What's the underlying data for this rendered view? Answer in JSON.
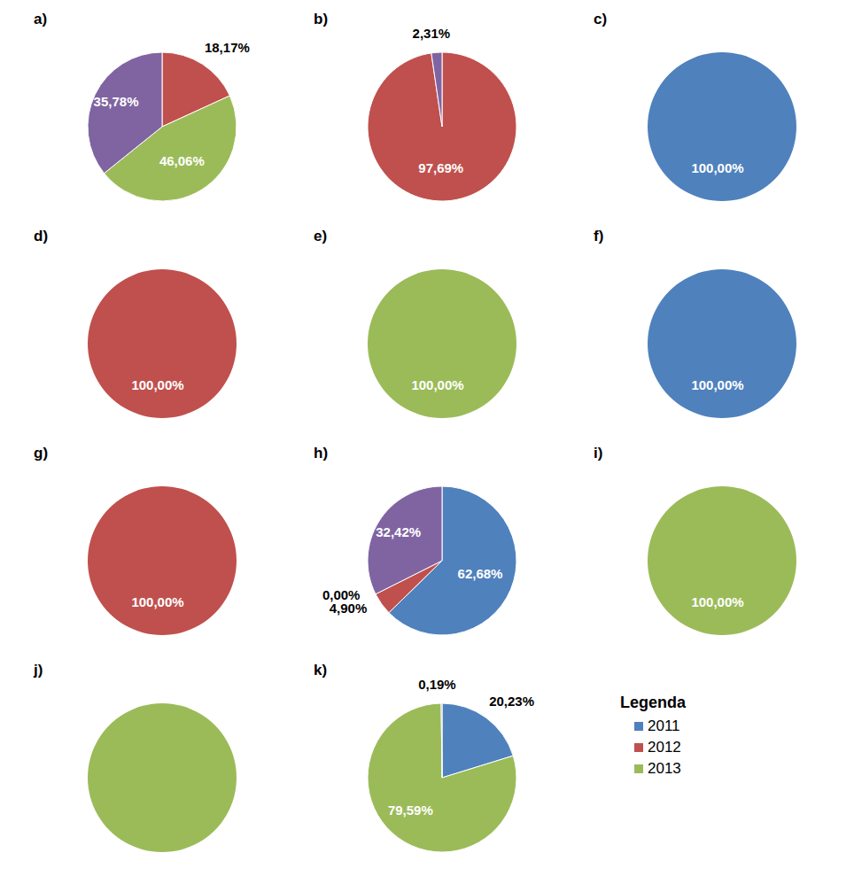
{
  "chart_data": [
    {
      "type": "pie",
      "title": "a)",
      "categories": [
        "2012",
        "2013",
        null
      ],
      "values": [
        18.17,
        46.06,
        35.78
      ],
      "value_labels": [
        "18,17%",
        "46,06%",
        "35,78%"
      ],
      "colors": [
        "#c0504d",
        "#9bbb59",
        "#8064a2"
      ],
      "data_labels": true
    },
    {
      "type": "pie",
      "title": "b)",
      "categories": [
        "2012",
        null
      ],
      "values": [
        97.69,
        2.31
      ],
      "value_labels": [
        "97,69%",
        "2,31%"
      ],
      "colors": [
        "#c0504d",
        "#8064a2"
      ],
      "data_labels": true
    },
    {
      "type": "pie",
      "title": "c)",
      "categories": [
        "2011"
      ],
      "values": [
        100
      ],
      "value_labels": [
        "100,00%"
      ],
      "colors": [
        "#4f81bd"
      ],
      "data_labels": true
    },
    {
      "type": "pie",
      "title": "d)",
      "categories": [
        "2012"
      ],
      "values": [
        100
      ],
      "value_labels": [
        "100,00%"
      ],
      "colors": [
        "#c0504d"
      ],
      "data_labels": true
    },
    {
      "type": "pie",
      "title": "e)",
      "categories": [
        "2013"
      ],
      "values": [
        100
      ],
      "value_labels": [
        "100,00%"
      ],
      "colors": [
        "#9bbb59"
      ],
      "data_labels": true
    },
    {
      "type": "pie",
      "title": "f)",
      "categories": [
        "2011"
      ],
      "values": [
        100
      ],
      "value_labels": [
        "100,00%"
      ],
      "colors": [
        "#4f81bd"
      ],
      "data_labels": true
    },
    {
      "type": "pie",
      "title": "g)",
      "categories": [
        "2012"
      ],
      "values": [
        100
      ],
      "value_labels": [
        "100,00%"
      ],
      "colors": [
        "#c0504d"
      ],
      "data_labels": true
    },
    {
      "type": "pie",
      "title": "h)",
      "categories": [
        "2011",
        "2012",
        "2013",
        null
      ],
      "values": [
        62.68,
        4.9,
        0,
        32.42
      ],
      "value_labels": [
        "62,68%",
        "4,90%",
        "0,00%",
        "32,42%"
      ],
      "colors": [
        "#4f81bd",
        "#c0504d",
        "#9bbb59",
        "#8064a2"
      ],
      "data_labels": true
    },
    {
      "type": "pie",
      "title": "i)",
      "categories": [
        "2013"
      ],
      "values": [
        100
      ],
      "value_labels": [
        "100,00%"
      ],
      "colors": [
        "#9bbb59"
      ],
      "data_labels": true
    },
    {
      "type": "pie",
      "title": "j)",
      "categories": [
        "2013"
      ],
      "values": [
        100
      ],
      "colors": [
        "#9bbb59"
      ],
      "data_labels": false
    },
    {
      "type": "pie",
      "title": "k)",
      "categories": [
        "2011",
        "2013",
        null
      ],
      "values": [
        20.23,
        79.59,
        0.19
      ],
      "value_labels": [
        "20,23%",
        "79,59%",
        "0,19%"
      ],
      "colors": [
        "#4f81bd",
        "#9bbb59",
        "#8064a2"
      ],
      "data_labels": true
    }
  ],
  "legend": {
    "title": "Legenda",
    "entries": [
      {
        "name": "2011",
        "color": "#4f81bd"
      },
      {
        "name": "2012",
        "color": "#c0504d"
      },
      {
        "name": "2013",
        "color": "#9bbb59"
      }
    ]
  }
}
